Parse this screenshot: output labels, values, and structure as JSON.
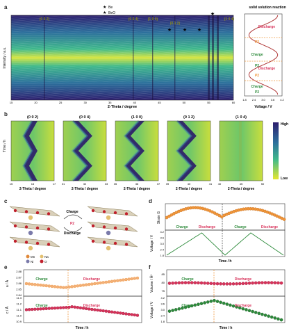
{
  "panel_letters": {
    "a": "a",
    "b": "b",
    "c": "c",
    "d": "d",
    "e": "e",
    "f": "f"
  },
  "a": {
    "ylabel": "Intensity / a.u.",
    "xlabel": "2-Theta / degree",
    "xticks": [
      "15",
      "20",
      "25",
      "30",
      "35",
      "40",
      "45",
      "50",
      "55",
      "60"
    ],
    "peak_labels": [
      "(0 0 2)",
      "(0 0 4)",
      "(1 0 0)",
      "(0 1 2)",
      "(1 0 4)"
    ],
    "legend": {
      "be": "Be",
      "beo": "BeO"
    },
    "side": {
      "title": "solid solution reaction",
      "labels": [
        "Discharge",
        "P2",
        "Charge",
        "P2",
        "Discharge",
        "P2",
        "Charge",
        "P2"
      ],
      "xlabel": "Voltage / V",
      "xticks": [
        "1.8",
        "2.4",
        "3.0",
        "3.6",
        "4.2"
      ]
    }
  },
  "b": {
    "ylabel": "Time / h",
    "xlabel": "2-Theta / degree",
    "maps": [
      {
        "label": "(0 0 2)",
        "ticks": [
          "15",
          "16",
          "17"
        ]
      },
      {
        "label": "(0 0 4)",
        "ticks": [
          "31",
          "32",
          "33"
        ]
      },
      {
        "label": "(1 0 0)",
        "ticks": [
          "35",
          "36",
          "37"
        ]
      },
      {
        "label": "(0 1 2)",
        "ticks": [
          "39",
          "40",
          "41"
        ]
      },
      {
        "label": "(1 0 4)",
        "ticks": [
          "40",
          "45",
          "50"
        ]
      }
    ],
    "colorbar": {
      "high": "High",
      "low": "Low"
    }
  },
  "c": {
    "charge": "Charge",
    "p2": "P2",
    "discharge": "Discharge",
    "legend": [
      "Mn",
      "Na",
      "Ni",
      "O"
    ]
  },
  "d": {
    "ylabel_top": "Strain G",
    "ylabel_bottom": "Voltage / V",
    "yticks_bottom": [
      "4.2",
      "3.6",
      "3.0",
      "2.4",
      "1.8"
    ],
    "xlabel": "Time / h",
    "labels": [
      "Charge",
      "Discharge",
      "Charge",
      "Discharge"
    ]
  },
  "e": {
    "ylabel_top": "a / Å",
    "yticks_top": [
      "2.88",
      "2.87",
      "2.86",
      "2.85",
      "2.84"
    ],
    "ylabel_bottom": "c / Å",
    "yticks_bottom": [
      "11.3",
      "11.2",
      "11.1",
      "11.0",
      "10.9"
    ],
    "xlabel": "Time / h",
    "charge": "Charge",
    "discharge": "Discharge"
  },
  "f": {
    "ylabel_top": "Volume / Å³",
    "yticks_top": [
      "85",
      "80",
      "75"
    ],
    "ylabel_bottom": "Voltage / V",
    "yticks_bottom": [
      "4.2",
      "3.6",
      "3.0",
      "2.4",
      "1.8"
    ],
    "xlabel": "Time / h",
    "charge": "Charge",
    "discharge": "Discharge"
  },
  "colors": {
    "orange": "#f0963a",
    "red": "#d8325a",
    "green": "#2c8a3a",
    "olive": "#8a8a1a"
  }
}
